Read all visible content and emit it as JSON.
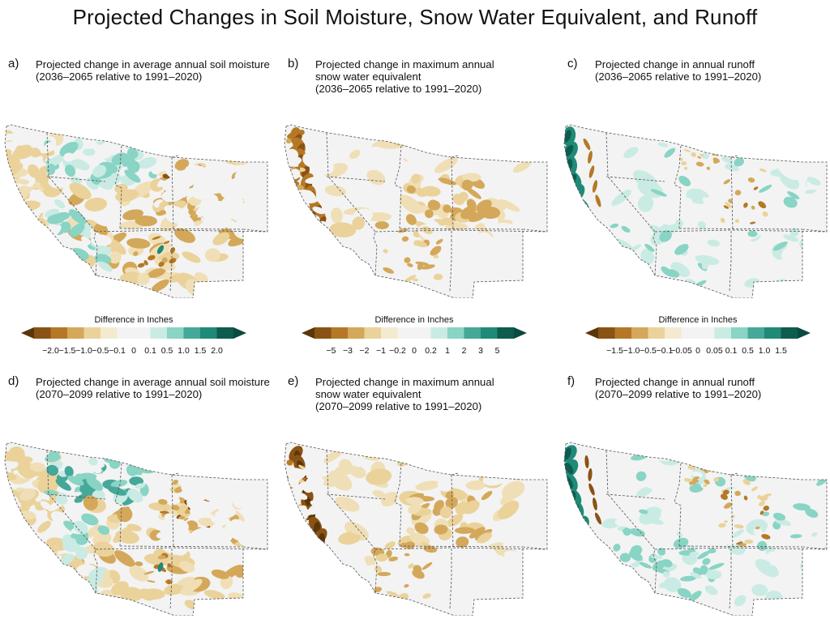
{
  "title": "Projected Changes in Soil Moisture, Snow Water Equivalent, and Runoff",
  "panels": [
    {
      "label": "a)",
      "lines": [
        "Projected change in average annual soil moisture",
        "(2036–2065 relative to 1991–2020)"
      ]
    },
    {
      "label": "b)",
      "lines": [
        "Projected change in maximum annual",
        "snow water equivalent",
        "(2036–2065 relative to 1991–2020)"
      ]
    },
    {
      "label": "c)",
      "lines": [
        "Projected change in annual runoff",
        "(2036–2065 relative to 1991–2020)"
      ]
    },
    {
      "label": "d)",
      "lines": [
        "Projected change in average annual soil moisture",
        "(2070–2099 relative to 1991–2020)"
      ]
    },
    {
      "label": "e)",
      "lines": [
        "Projected change in maximum annual",
        "snow water equivalent",
        "(2070–2099 relative to 1991–2020)"
      ]
    },
    {
      "label": "f)",
      "lines": [
        "Projected change in annual runoff",
        "(2070–2099 relative to 1991–2020)"
      ]
    }
  ],
  "legends": [
    {
      "title": "Difference in Inches",
      "ticks": [
        "−2.0",
        "−1.5",
        "−1.0",
        "−0.5",
        "−0.1",
        "0",
        "0.1",
        "0.5",
        "1.0",
        "1.5",
        "2.0"
      ]
    },
    {
      "title": "Difference in Inches",
      "ticks": [
        "−5",
        "−3",
        "−2",
        "−1",
        "−0.2",
        "0",
        "0.2",
        "1",
        "2",
        "3",
        "5"
      ]
    },
    {
      "title": "Difference in Inches",
      "ticks": [
        "−1.5",
        "−1.0",
        "−0.5",
        "−0.1",
        "−0.05",
        "0",
        "0.05",
        "0.1",
        "0.5",
        "1.0",
        "1.5"
      ]
    }
  ],
  "colors": {
    "scale": [
      "#8a5214",
      "#b57826",
      "#d4a85a",
      "#ead29a",
      "#f4ead0",
      "#f3f3f3",
      "#f3f3f3",
      "#c9ebe3",
      "#89d4c5",
      "#45a898",
      "#1f8a78",
      "#0d5c4e"
    ],
    "brown_end": "#5b3608",
    "teal_end": "#0a4a3f",
    "land": "#f3f3f3",
    "border": "#555555"
  }
}
